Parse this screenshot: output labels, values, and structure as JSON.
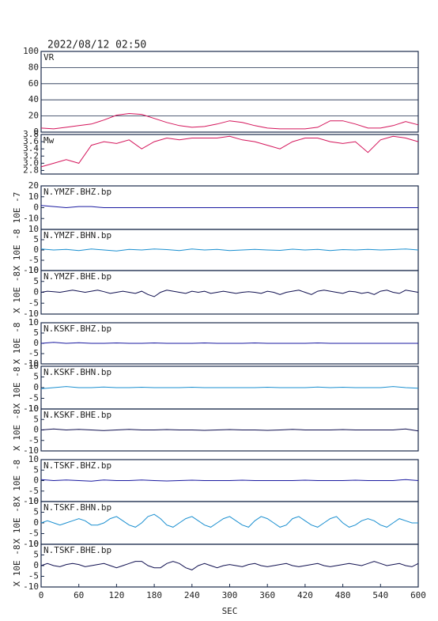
{
  "chart_data": [
    {
      "type": "line",
      "title": "2022/08/12 02:50",
      "xlim": [
        0,
        600
      ],
      "ylim": [
        0,
        100
      ],
      "yticks": [
        0,
        20,
        40,
        60,
        80,
        100
      ],
      "grid": true,
      "x": [
        0,
        20,
        40,
        60,
        80,
        100,
        120,
        140,
        160,
        180,
        200,
        220,
        240,
        260,
        280,
        300,
        320,
        340,
        360,
        380,
        400,
        420,
        440,
        460,
        480,
        500,
        520,
        540,
        560,
        580,
        600
      ],
      "series": [
        {
          "name": "VR",
          "color": "#d4145a",
          "values": [
            5,
            4,
            6,
            8,
            10,
            15,
            21,
            23,
            22,
            17,
            12,
            8,
            6,
            7,
            10,
            14,
            12,
            8,
            5,
            4,
            4,
            4,
            6,
            14,
            14,
            10,
            5,
            5,
            8,
            13,
            9
          ]
        }
      ]
    },
    {
      "type": "line",
      "xlim": [
        0,
        600
      ],
      "ylim": [
        2.7,
        3.8
      ],
      "yticks": [
        2.8,
        {
          "value": 3,
          "label": "3.0"
        },
        3.2,
        3.4,
        3.6,
        3.8
      ],
      "x": [
        0,
        20,
        40,
        60,
        80,
        100,
        120,
        140,
        160,
        180,
        200,
        220,
        240,
        260,
        280,
        300,
        320,
        340,
        360,
        380,
        400,
        420,
        440,
        460,
        480,
        500,
        520,
        540,
        560,
        580,
        600
      ],
      "series": [
        {
          "name": "Mw",
          "color": "#d4145a",
          "values": [
            2.9,
            3.0,
            3.1,
            3.0,
            3.5,
            3.6,
            3.55,
            3.65,
            3.4,
            3.6,
            3.7,
            3.65,
            3.7,
            3.7,
            3.7,
            3.75,
            3.65,
            3.6,
            3.5,
            3.4,
            3.6,
            3.7,
            3.7,
            3.6,
            3.55,
            3.6,
            3.3,
            3.65,
            3.75,
            3.7,
            3.6
          ]
        }
      ]
    },
    {
      "type": "line",
      "xlim": [
        0,
        600
      ],
      "ylim": [
        -20,
        20
      ],
      "yticks": [
        -10,
        0,
        10,
        20
      ],
      "ylabel": "10E -7",
      "x": [
        0,
        20,
        40,
        60,
        80,
        100,
        120,
        140,
        160,
        180,
        200,
        220,
        240,
        260,
        280,
        300,
        320,
        340,
        360,
        380,
        400,
        420,
        440,
        460,
        480,
        500,
        520,
        540,
        560,
        580,
        600
      ],
      "series": [
        {
          "name": "N.YMZF.BHZ.bp",
          "color": "#1a1aa0",
          "values": [
            2,
            1,
            0,
            1,
            1,
            0,
            0,
            0,
            0,
            0,
            0,
            0,
            0,
            0,
            0,
            0,
            0,
            0,
            0,
            0,
            0,
            0,
            0,
            0,
            0,
            0,
            0,
            0,
            0,
            0,
            0
          ]
        }
      ]
    },
    {
      "type": "line",
      "xlim": [
        0,
        600
      ],
      "ylim": [
        -10,
        10
      ],
      "yticks": [
        -10,
        -5,
        0,
        5,
        10
      ],
      "ylabel": "X 10E -8",
      "x": [
        0,
        20,
        40,
        60,
        80,
        100,
        120,
        140,
        160,
        180,
        200,
        220,
        240,
        260,
        280,
        300,
        320,
        340,
        360,
        380,
        400,
        420,
        440,
        460,
        480,
        500,
        520,
        540,
        560,
        580,
        600
      ],
      "series": [
        {
          "name": "N.YMZF.BHN.bp",
          "color": "#1a8fd0",
          "values": [
            0.5,
            0,
            0.3,
            -0.3,
            0.5,
            0,
            -0.5,
            0.3,
            0,
            0.5,
            0.2,
            -0.3,
            0.5,
            0,
            0.3,
            -0.3,
            0,
            0.3,
            0,
            -0.2,
            0.4,
            0,
            0.3,
            -0.3,
            0.2,
            0,
            0.3,
            0,
            0.2,
            0.5,
            0
          ]
        }
      ]
    },
    {
      "type": "line",
      "xlim": [
        0,
        600
      ],
      "ylim": [
        -10,
        10
      ],
      "yticks": [
        -10,
        -5,
        0,
        5,
        10
      ],
      "ylabel": "X 10E -8",
      "x": [
        0,
        10,
        20,
        30,
        40,
        50,
        60,
        70,
        80,
        90,
        100,
        110,
        120,
        130,
        140,
        150,
        160,
        170,
        180,
        190,
        200,
        210,
        220,
        230,
        240,
        250,
        260,
        270,
        280,
        290,
        300,
        310,
        320,
        330,
        340,
        350,
        360,
        370,
        380,
        390,
        400,
        410,
        420,
        430,
        440,
        450,
        460,
        470,
        480,
        490,
        500,
        510,
        520,
        530,
        540,
        550,
        560,
        570,
        580,
        590,
        600
      ],
      "series": [
        {
          "name": "N.YMZF.BHE.bp",
          "color": "#101050",
          "values": [
            0,
            0.5,
            0.3,
            0,
            0.5,
            1,
            0.5,
            0,
            0.5,
            1,
            0.3,
            -0.5,
            0,
            0.5,
            0,
            -0.5,
            0.5,
            -1,
            -2,
            0,
            1,
            0.5,
            0,
            -0.5,
            0.5,
            0,
            0.5,
            -0.5,
            0,
            0.5,
            0,
            -0.5,
            0,
            0.3,
            0,
            -0.5,
            0.5,
            0,
            -1,
            0,
            0.5,
            1,
            0,
            -1,
            0.5,
            1,
            0.5,
            0,
            -0.5,
            0.5,
            0.2,
            -0.5,
            0,
            -1,
            0.5,
            1,
            0,
            -0.5,
            1,
            0.5,
            0
          ]
        }
      ]
    },
    {
      "type": "line",
      "xlim": [
        0,
        600
      ],
      "ylim": [
        -10,
        10
      ],
      "yticks": [
        -10,
        -5,
        0,
        5,
        10
      ],
      "ylabel": "X 10E -8",
      "x": [
        0,
        20,
        40,
        60,
        80,
        100,
        120,
        140,
        160,
        180,
        200,
        220,
        240,
        260,
        280,
        300,
        320,
        340,
        360,
        380,
        400,
        420,
        440,
        460,
        480,
        500,
        520,
        540,
        560,
        580,
        600
      ],
      "series": [
        {
          "name": "N.KSKF.BHZ.bp",
          "color": "#1a1aa0",
          "values": [
            0,
            0.5,
            0,
            0.3,
            0,
            0,
            0.2,
            0,
            0,
            0.2,
            0,
            0,
            0,
            0.2,
            0,
            0,
            0,
            0.2,
            0,
            0,
            0,
            0,
            0.2,
            0,
            0,
            0,
            0,
            0,
            0,
            0,
            0
          ]
        }
      ]
    },
    {
      "type": "line",
      "xlim": [
        0,
        600
      ],
      "ylim": [
        -10,
        10
      ],
      "yticks": [
        -10,
        -5,
        0,
        5,
        10
      ],
      "ylabel": "X 10E -8",
      "x": [
        0,
        20,
        40,
        60,
        80,
        100,
        120,
        140,
        160,
        180,
        200,
        220,
        240,
        260,
        280,
        300,
        320,
        340,
        360,
        380,
        400,
        420,
        440,
        460,
        480,
        500,
        520,
        540,
        560,
        580,
        600
      ],
      "series": [
        {
          "name": "N.KSKF.BHN.bp",
          "color": "#1a8fd0",
          "values": [
            -0.5,
            0,
            0.5,
            0,
            0,
            0.3,
            0,
            0,
            0.2,
            0,
            0,
            0,
            0.2,
            0,
            0,
            0,
            0,
            0,
            0.2,
            0,
            0,
            0,
            0.3,
            0,
            0.2,
            0,
            0,
            0,
            0.5,
            0,
            -0.3
          ]
        }
      ]
    },
    {
      "type": "line",
      "xlim": [
        0,
        600
      ],
      "ylim": [
        -10,
        10
      ],
      "yticks": [
        -10,
        -5,
        0,
        5,
        10
      ],
      "ylabel": "X 10E -8",
      "x": [
        0,
        20,
        40,
        60,
        80,
        100,
        120,
        140,
        160,
        180,
        200,
        220,
        240,
        260,
        280,
        300,
        320,
        340,
        360,
        380,
        400,
        420,
        440,
        460,
        480,
        500,
        520,
        540,
        560,
        580,
        600
      ],
      "series": [
        {
          "name": "N.KSKF.BHE.bp",
          "color": "#101050",
          "values": [
            0,
            0.5,
            0,
            0.3,
            0,
            -0.3,
            0,
            0.3,
            0,
            0,
            0.2,
            0,
            0,
            -0.2,
            0,
            0.2,
            0,
            0,
            -0.2,
            0,
            0.3,
            0,
            0,
            0,
            0.2,
            0,
            0,
            0,
            0,
            0.5,
            -0.5
          ]
        }
      ]
    },
    {
      "type": "line",
      "xlim": [
        0,
        600
      ],
      "ylim": [
        -10,
        10
      ],
      "yticks": [
        -10,
        -5,
        0,
        5,
        10
      ],
      "ylabel": "X 10E -8",
      "x": [
        0,
        20,
        40,
        60,
        80,
        100,
        120,
        140,
        160,
        180,
        200,
        220,
        240,
        260,
        280,
        300,
        320,
        340,
        360,
        380,
        400,
        420,
        440,
        460,
        480,
        500,
        520,
        540,
        560,
        580,
        600
      ],
      "series": [
        {
          "name": "N.TSKF.BHZ.bp",
          "color": "#1a1aa0",
          "values": [
            0.5,
            0,
            0.3,
            0,
            -0.3,
            0.3,
            0,
            0,
            0.3,
            0,
            -0.2,
            0,
            0.2,
            0,
            0,
            0,
            0.2,
            0,
            0,
            0,
            0,
            0.2,
            0,
            0,
            0,
            0.2,
            0,
            0,
            0,
            0.5,
            0
          ]
        }
      ]
    },
    {
      "type": "line",
      "xlim": [
        0,
        600
      ],
      "ylim": [
        -10,
        10
      ],
      "yticks": [
        -10,
        -5,
        0,
        5,
        10
      ],
      "ylabel": "X 10E -8",
      "x": [
        0,
        10,
        20,
        30,
        40,
        50,
        60,
        70,
        80,
        90,
        100,
        110,
        120,
        130,
        140,
        150,
        160,
        170,
        180,
        190,
        200,
        210,
        220,
        230,
        240,
        250,
        260,
        270,
        280,
        290,
        300,
        310,
        320,
        330,
        340,
        350,
        360,
        370,
        380,
        390,
        400,
        410,
        420,
        430,
        440,
        450,
        460,
        470,
        480,
        490,
        500,
        510,
        520,
        530,
        540,
        550,
        560,
        570,
        580,
        590,
        600
      ],
      "series": [
        {
          "name": "N.TSKF.BHN.bp",
          "color": "#1a8fd0",
          "values": [
            0,
            1,
            0,
            -1,
            0,
            1,
            2,
            1,
            -1,
            -1,
            0,
            2,
            3,
            1,
            -1,
            -2,
            0,
            3,
            4,
            2,
            -1,
            -2,
            0,
            2,
            3,
            1,
            -1,
            -2,
            0,
            2,
            3,
            1,
            -1,
            -2,
            1,
            3,
            2,
            0,
            -2,
            -1,
            2,
            3,
            1,
            -1,
            -2,
            0,
            2,
            3,
            0,
            -2,
            -1,
            1,
            2,
            1,
            -1,
            -2,
            0,
            2,
            1,
            0,
            0
          ]
        }
      ]
    },
    {
      "type": "line",
      "xlim": [
        0,
        600
      ],
      "ylim": [
        -10,
        10
      ],
      "yticks": [
        -10,
        -5,
        0,
        5,
        10
      ],
      "ylabel": "X 10E -8",
      "xlabel": "SEC",
      "xticks": [
        0,
        60,
        120,
        180,
        240,
        300,
        360,
        420,
        480,
        540,
        600
      ],
      "x": [
        0,
        10,
        20,
        30,
        40,
        50,
        60,
        70,
        80,
        90,
        100,
        110,
        120,
        130,
        140,
        150,
        160,
        170,
        180,
        190,
        200,
        210,
        220,
        230,
        240,
        250,
        260,
        270,
        280,
        290,
        300,
        310,
        320,
        330,
        340,
        350,
        360,
        370,
        380,
        390,
        400,
        410,
        420,
        430,
        440,
        450,
        460,
        470,
        480,
        490,
        500,
        510,
        520,
        530,
        540,
        550,
        560,
        570,
        580,
        590,
        600
      ],
      "series": [
        {
          "name": "N.TSKF.BHE.bp",
          "color": "#101050",
          "values": [
            0,
            1,
            0,
            -0.5,
            0.5,
            1,
            0.5,
            -0.5,
            0,
            0.5,
            1,
            0,
            -1,
            0,
            1,
            2,
            2,
            0,
            -1,
            -1,
            1,
            2,
            1,
            -1,
            -2,
            0,
            1,
            0,
            -1,
            0,
            0.5,
            0,
            -0.5,
            0.5,
            1,
            0,
            -0.5,
            0,
            0.5,
            1,
            0,
            -0.5,
            0,
            0.5,
            1,
            0,
            -0.5,
            0,
            0.5,
            1,
            0.5,
            0,
            1,
            2,
            1,
            0,
            0.5,
            1,
            0,
            -0.5,
            1
          ]
        }
      ]
    }
  ]
}
